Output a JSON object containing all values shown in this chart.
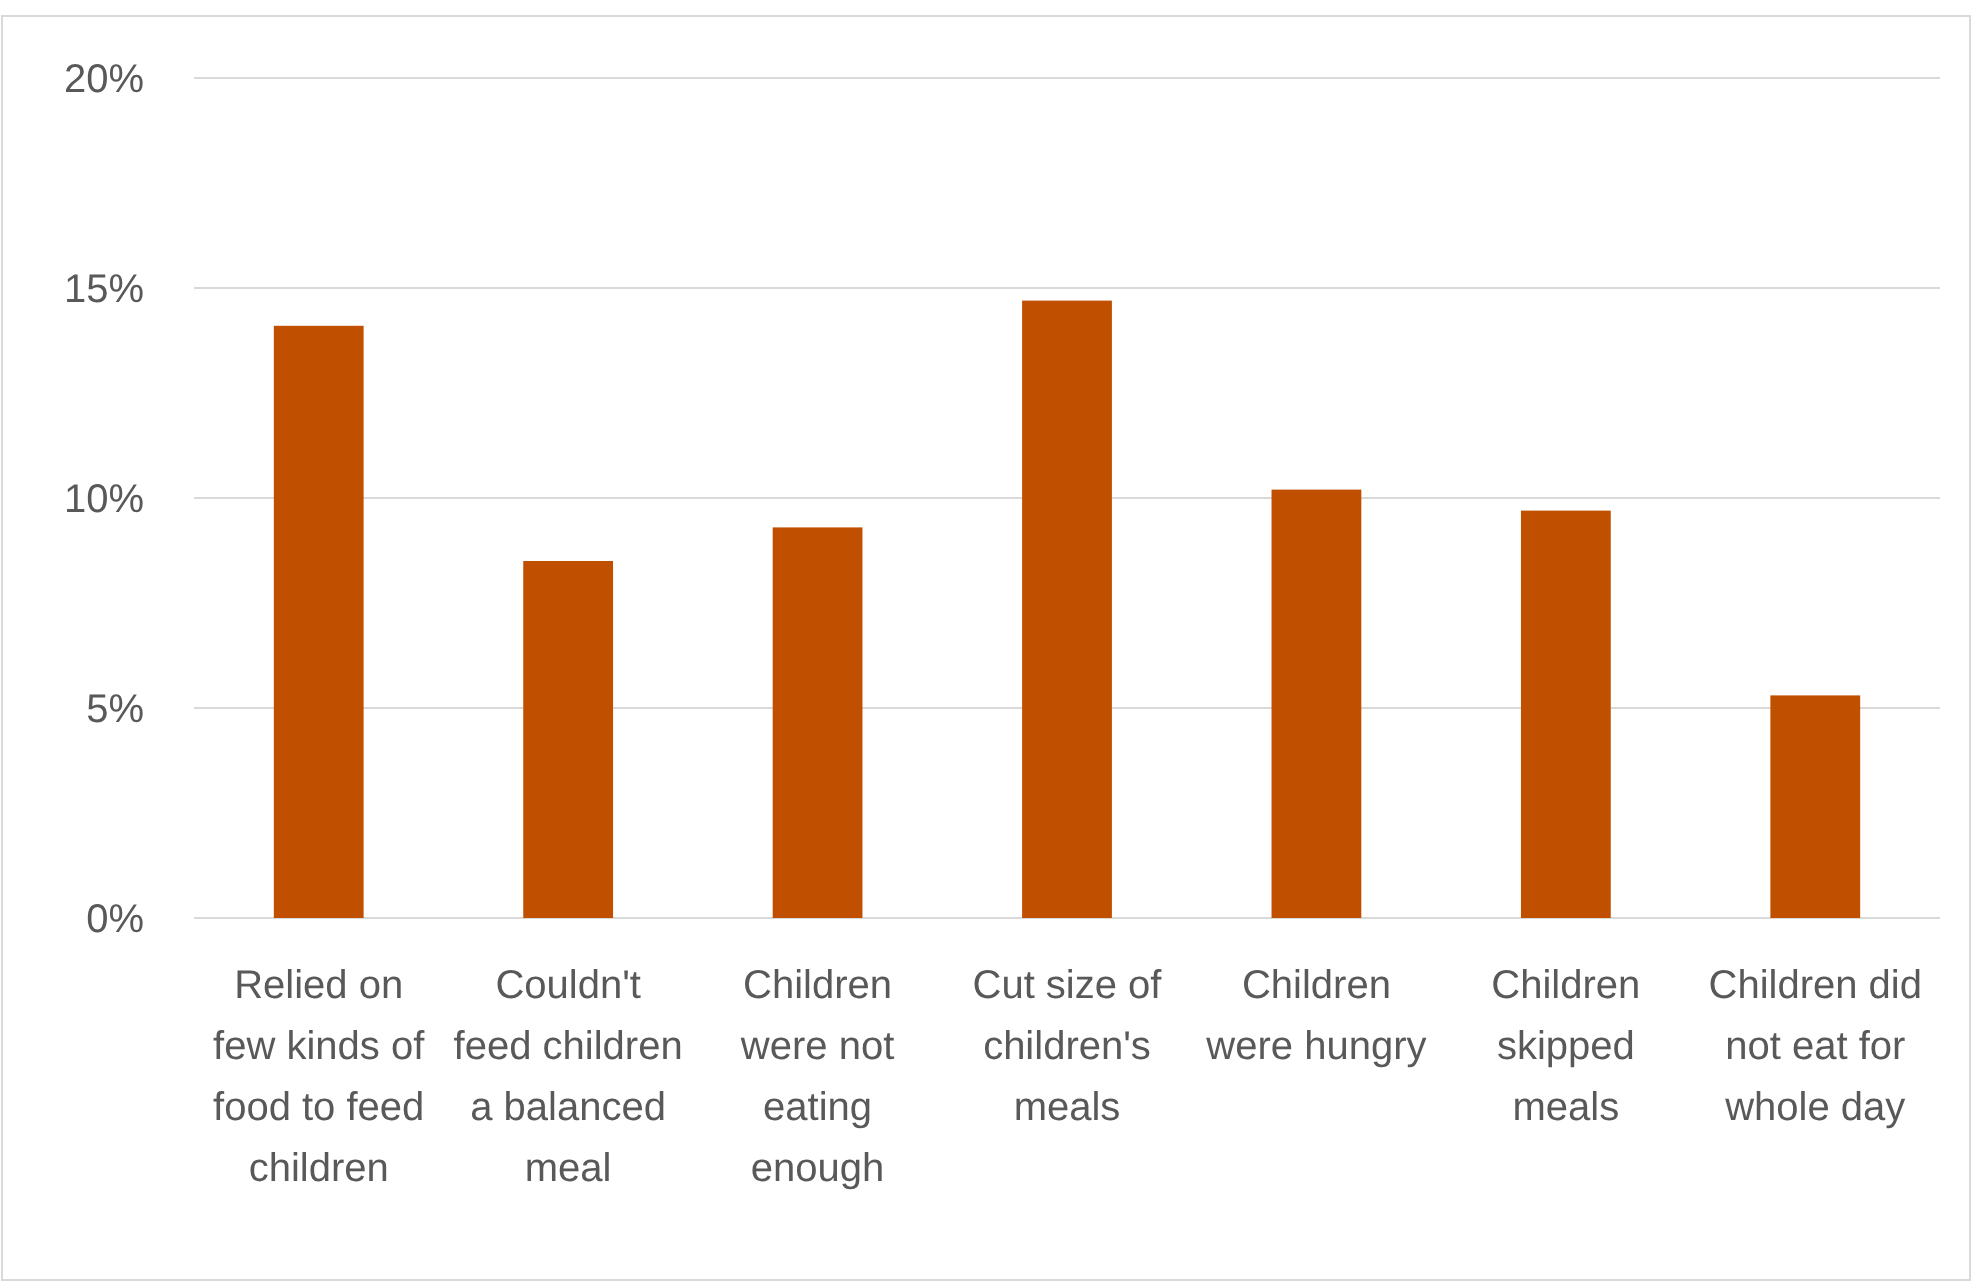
{
  "chart_data": {
    "type": "bar",
    "categories": [
      "Relied on few kinds of food to feed children",
      "Couldn't feed children a balanced meal",
      "Children were not eating enough",
      "Cut size of children's meals",
      "Children were hungry",
      "Children skipped meals",
      "Children did not eat for whole day"
    ],
    "values": [
      14.1,
      8.5,
      9.3,
      14.7,
      10.2,
      9.7,
      5.3
    ],
    "color": "#c05000",
    "ylim": [
      0,
      20
    ],
    "yticks": [
      {
        "value": 0,
        "label": "0%"
      },
      {
        "value": 5,
        "label": "5%"
      },
      {
        "value": 10,
        "label": "10%"
      },
      {
        "value": 15,
        "label": "15%"
      },
      {
        "value": 20,
        "label": "20%"
      }
    ],
    "grid": "y"
  }
}
